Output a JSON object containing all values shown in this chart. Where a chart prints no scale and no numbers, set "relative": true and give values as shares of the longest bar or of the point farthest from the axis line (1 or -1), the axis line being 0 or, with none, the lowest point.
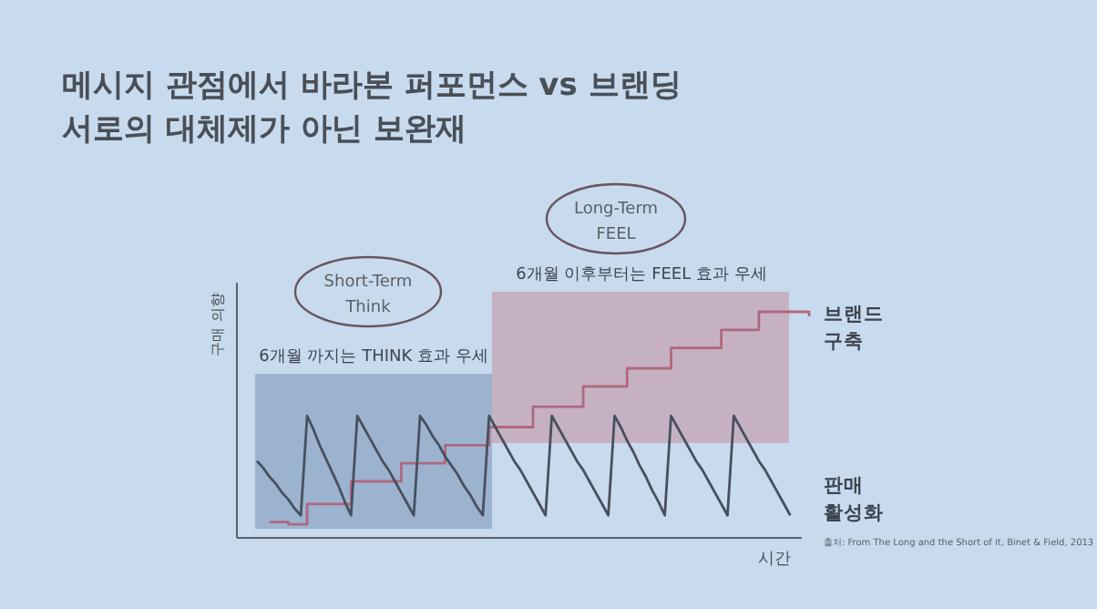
{
  "chart_data": {
    "type": "line",
    "relative": true,
    "title": "메시지 관점에서 바라본 퍼포먼스 vs 브랜딩",
    "subtitle": "서로의 대체제가 아닌 보완재",
    "xlabel": "시간",
    "ylabel": "구매 의향",
    "legend": false,
    "marker": "none",
    "line_style": "solid",
    "categories": [
      null,
      null,
      null,
      null,
      null,
      null,
      null,
      null,
      null,
      null,
      null,
      null,
      null,
      null,
      null,
      null,
      null,
      null,
      null,
      null,
      null,
      null,
      null,
      null,
      null,
      null,
      null,
      null,
      null,
      null,
      null,
      null,
      null,
      null,
      null,
      null,
      null,
      null,
      null,
      null,
      null,
      null,
      null,
      null,
      null,
      null,
      null,
      null,
      null,
      null,
      null,
      null,
      null,
      null,
      null,
      null,
      null,
      null,
      null,
      null,
      null,
      null,
      null,
      null,
      null,
      null,
      null,
      null,
      null,
      null,
      null,
      null,
      null,
      null,
      null,
      null,
      null,
      null,
      null,
      null,
      null,
      null,
      null,
      null,
      null,
      null,
      null,
      null,
      null
    ],
    "series": [
      {
        "name": "브랜드 구축",
        "type": "step",
        "color": "#b0687e",
        "values": [
          null,
          null,
          0.07,
          0.07,
          0.07,
          0.06,
          0.06,
          0.06,
          0.15,
          0.15,
          0.15,
          0.15,
          0.15,
          0.15,
          0.15,
          0.25,
          0.25,
          0.25,
          0.25,
          0.25,
          0.25,
          0.25,
          0.25,
          0.33,
          0.33,
          0.33,
          0.33,
          0.33,
          0.33,
          0.33,
          0.41,
          0.41,
          0.41,
          0.41,
          0.41,
          0.41,
          0.41,
          0.49,
          0.49,
          0.49,
          0.49,
          0.49,
          0.49,
          0.49,
          0.58,
          0.58,
          0.58,
          0.58,
          0.58,
          0.58,
          0.58,
          0.58,
          0.67,
          0.67,
          0.67,
          0.67,
          0.67,
          0.67,
          0.67,
          0.75,
          0.75,
          0.75,
          0.75,
          0.75,
          0.75,
          0.75,
          0.84,
          0.84,
          0.84,
          0.84,
          0.84,
          0.84,
          0.84,
          0.84,
          0.92,
          0.92,
          0.92,
          0.92,
          0.92,
          0.92,
          1.0,
          1.0,
          1.0,
          1.0,
          1.0,
          1.0,
          1.0,
          1.0,
          0.98
        ]
      },
      {
        "name": "판매 활성화",
        "color": "#47505e",
        "values": [
          0.34,
          0.31,
          0.27,
          0.24,
          0.2,
          0.17,
          0.13,
          0.1,
          0.54,
          0.48,
          0.41,
          0.35,
          0.29,
          0.23,
          0.16,
          0.1,
          0.54,
          0.49,
          0.44,
          0.39,
          0.34,
          0.3,
          0.25,
          0.2,
          0.15,
          0.1,
          0.54,
          0.5,
          0.45,
          0.41,
          0.36,
          0.32,
          0.28,
          0.23,
          0.19,
          0.14,
          0.1,
          0.54,
          0.49,
          0.44,
          0.39,
          0.34,
          0.3,
          0.25,
          0.2,
          0.15,
          0.1,
          0.54,
          0.49,
          0.44,
          0.39,
          0.34,
          0.3,
          0.25,
          0.2,
          0.15,
          0.1,
          0.54,
          0.49,
          0.43,
          0.38,
          0.32,
          0.27,
          0.21,
          0.16,
          0.1,
          0.54,
          0.49,
          0.44,
          0.39,
          0.34,
          0.3,
          0.25,
          0.2,
          0.15,
          0.1,
          0.54,
          0.49,
          0.44,
          0.39,
          0.34,
          0.3,
          0.25,
          0.2,
          0.15,
          0.1,
          null,
          null,
          null
        ]
      }
    ],
    "annotations": [
      "Short-Term\nThink",
      "Long-Term\nFEEL",
      "6개월 까지는 THINK 효과 우세",
      "6개월 이후부터는 FEEL 효과 우세",
      "출처: From The Long and the Short of it, Binet & Field, 2013"
    ]
  }
}
